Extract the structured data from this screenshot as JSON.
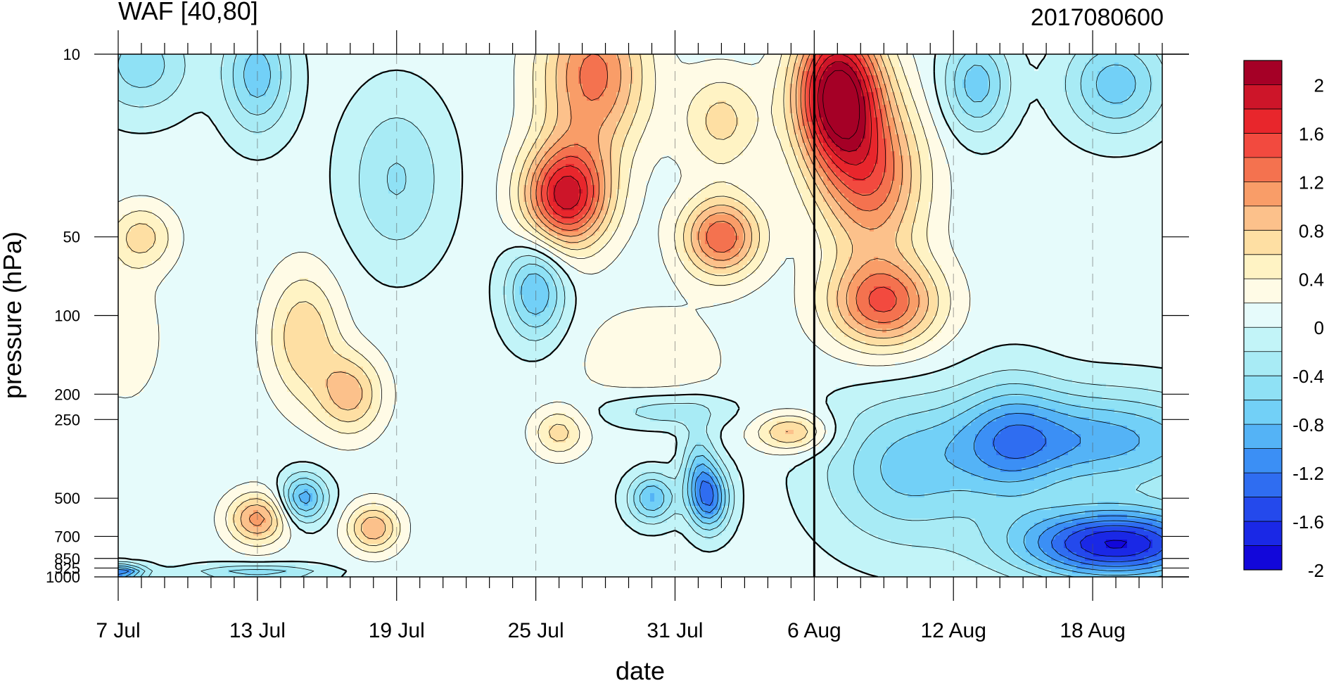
{
  "chart_data": {
    "type": "heatmap",
    "title": "WAF [40,80]",
    "timestamp": "2017080600",
    "xlabel": "date",
    "ylabel": "pressure (hPa)",
    "x_ticks": [
      "7 Jul",
      "13 Jul",
      "19 Jul",
      "25 Jul",
      "31 Jul",
      "6 Aug",
      "12 Aug",
      "18 Aug"
    ],
    "x_tick_days": [
      0,
      6,
      12,
      18,
      24,
      30,
      36,
      42
    ],
    "x_range_days": [
      0,
      45
    ],
    "y_ticks": [
      "10",
      "50",
      "100",
      "200",
      "250",
      "500",
      "700",
      "850",
      "925",
      "1000"
    ],
    "y_tick_values": [
      10,
      50,
      100,
      200,
      250,
      500,
      700,
      850,
      925,
      1000
    ],
    "y_scale": "log",
    "y_range": [
      1000,
      10
    ],
    "analysis_day": 30,
    "colorbar": {
      "labels": [
        "2",
        "1.6",
        "1.2",
        "0.8",
        "0.4",
        "0",
        "-0.4",
        "-0.8",
        "-1.2",
        "-1.6",
        "-2"
      ],
      "label_values": [
        2,
        1.6,
        1.2,
        0.8,
        0.4,
        0,
        -0.4,
        -0.8,
        -1.2,
        -1.6,
        -2
      ],
      "contour_interval": 0.2,
      "colors": [
        "#a50026",
        "#cd1529",
        "#e8262c",
        "#f24a3f",
        "#f4724f",
        "#f99d68",
        "#fcc18b",
        "#fedfa3",
        "#fff3c4",
        "#fffbe6",
        "#e6fbfb",
        "#c2f4f8",
        "#a8ebf5",
        "#8fe1f5",
        "#72d0f7",
        "#54b3f6",
        "#3b8ff5",
        "#2f6df1",
        "#2449ec",
        "#1a28e6",
        "#1207da"
      ]
    },
    "features": [
      {
        "day": 19.3,
        "p": 35,
        "value": 1.8,
        "sx": 1.3,
        "sp": 0.32
      },
      {
        "day": 20.5,
        "p": 12,
        "value": 1.2,
        "sx": 1.6,
        "sp": 0.5
      },
      {
        "day": 31,
        "p": 14,
        "value": 2.2,
        "sx": 1.3,
        "sp": 0.45
      },
      {
        "day": 32.5,
        "p": 30,
        "value": 1.2,
        "sx": 1.6,
        "sp": 0.5
      },
      {
        "day": 33,
        "p": 90,
        "value": 1.3,
        "sx": 1.7,
        "sp": 0.28
      },
      {
        "day": 26,
        "p": 50,
        "value": 1.3,
        "sx": 1.2,
        "sp": 0.25
      },
      {
        "day": 26,
        "p": 18,
        "value": 0.6,
        "sx": 1.2,
        "sp": 0.3
      },
      {
        "day": 23,
        "p": 150,
        "value": 0.3,
        "sx": 2.2,
        "sp": 0.35
      },
      {
        "day": 6,
        "p": 600,
        "value": 1.0,
        "sx": 0.9,
        "sp": 0.16
      },
      {
        "day": 8,
        "p": 120,
        "value": 0.7,
        "sx": 1.1,
        "sp": 0.4
      },
      {
        "day": 10,
        "p": 200,
        "value": 0.8,
        "sx": 1.0,
        "sp": 0.25
      },
      {
        "day": 11,
        "p": 650,
        "value": 0.9,
        "sx": 0.8,
        "sp": 0.15
      },
      {
        "day": 19,
        "p": 280,
        "value": 0.6,
        "sx": 0.8,
        "sp": 0.15
      },
      {
        "day": 29,
        "p": 280,
        "value": 0.8,
        "sx": 1.1,
        "sp": 0.12
      },
      {
        "day": 1,
        "p": 50,
        "value": 0.6,
        "sx": 1.0,
        "sp": 0.2
      },
      {
        "day": 0.3,
        "p": 120,
        "value": 0.25,
        "sx": 1.2,
        "sp": 0.45
      },
      {
        "day": 18,
        "p": 80,
        "value": -0.9,
        "sx": 0.9,
        "sp": 0.3
      },
      {
        "day": 8,
        "p": 500,
        "value": -1.0,
        "sx": 0.7,
        "sp": 0.15
      },
      {
        "day": 25,
        "p": 380,
        "value": -0.6,
        "sx": 0.5,
        "sp": 0.25
      },
      {
        "day": 25.5,
        "p": 500,
        "value": -1.2,
        "sx": 0.6,
        "sp": 0.2
      },
      {
        "day": 23,
        "p": 500,
        "value": -0.9,
        "sx": 0.7,
        "sp": 0.15
      },
      {
        "day": 23.5,
        "p": 230,
        "value": -0.5,
        "sx": 2.0,
        "sp": 0.12
      },
      {
        "day": 6,
        "p": 12,
        "value": -0.8,
        "sx": 1.0,
        "sp": 0.35
      },
      {
        "day": 1,
        "p": 11,
        "value": -0.6,
        "sx": 1.5,
        "sp": 0.3
      },
      {
        "day": 12,
        "p": 30,
        "value": -0.5,
        "sx": 1.5,
        "sp": 0.5
      },
      {
        "day": 37,
        "p": 13,
        "value": -0.8,
        "sx": 1.0,
        "sp": 0.3
      },
      {
        "day": 43,
        "p": 13,
        "value": -0.8,
        "sx": 1.5,
        "sp": 0.3
      },
      {
        "day": 43,
        "p": 750,
        "value": -1.9,
        "sx": 3.0,
        "sp": 0.22
      },
      {
        "day": 42,
        "p": 300,
        "value": -1.0,
        "sx": 4.0,
        "sp": 0.3
      },
      {
        "day": 34,
        "p": 400,
        "value": -0.7,
        "sx": 2.5,
        "sp": 0.45
      },
      {
        "day": 38.5,
        "p": 300,
        "value": -0.6,
        "sx": 1.5,
        "sp": 0.4
      },
      {
        "day": 0,
        "p": 960,
        "value": -1.3,
        "sx": 0.8,
        "sp": 0.05
      },
      {
        "day": 6,
        "p": 960,
        "value": -0.6,
        "sx": 2.0,
        "sp": 0.05
      }
    ]
  }
}
